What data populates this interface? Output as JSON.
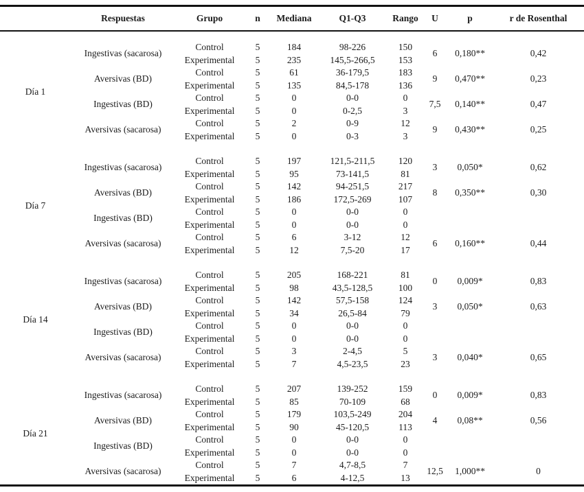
{
  "page": {
    "background": "#ffffff",
    "text_color": "#1c1c1c",
    "rule_color": "#111111"
  },
  "table": {
    "columns": [
      "",
      "Respuestas",
      "Grupo",
      "n",
      "Mediana",
      "Q1-Q3",
      "Rango",
      "U",
      "p",
      "r de Rosenthal"
    ],
    "days": [
      {
        "label": "Día 1",
        "groups": [
          {
            "respuesta": "Ingestivas (sacarosa)",
            "rows": [
              [
                "Control",
                "5",
                "184",
                "98-226",
                "150"
              ],
              [
                "Experimental",
                "5",
                "235",
                "145,5-266,5",
                "153"
              ]
            ],
            "u": "6",
            "p": "0,180**",
            "r": "0,42"
          },
          {
            "respuesta": "Aversivas (BD)",
            "rows": [
              [
                "Control",
                "5",
                "61",
                "36-179,5",
                "183"
              ],
              [
                "Experimental",
                "5",
                "135",
                "84,5-178",
                "136"
              ]
            ],
            "u": "9",
            "p": "0,470**",
            "r": "0,23"
          },
          {
            "respuesta": "Ingestivas (BD)",
            "rows": [
              [
                "Control",
                "5",
                "0",
                "0-0",
                "0"
              ],
              [
                "Experimental",
                "5",
                "0",
                "0-2,5",
                "3"
              ]
            ],
            "u": "7,5",
            "p": "0,140**",
            "r": "0,47"
          },
          {
            "respuesta": "Aversivas (sacarosa)",
            "rows": [
              [
                "Control",
                "5",
                "2",
                "0-9",
                "12"
              ],
              [
                "Experimental",
                "5",
                "0",
                "0-3",
                "3"
              ]
            ],
            "u": "9",
            "p": "0,430**",
            "r": "0,25"
          }
        ]
      },
      {
        "label": "Día 7",
        "groups": [
          {
            "respuesta": "Ingestivas (sacarosa)",
            "rows": [
              [
                "Control",
                "5",
                "197",
                "121,5-211,5",
                "120"
              ],
              [
                "Experimental",
                "5",
                "95",
                "73-141,5",
                "81"
              ]
            ],
            "u": "3",
            "p": "0,050*",
            "r": "0,62"
          },
          {
            "respuesta": "Aversivas (BD)",
            "rows": [
              [
                "Control",
                "5",
                "142",
                "94-251,5",
                "217"
              ],
              [
                "Experimental",
                "5",
                "186",
                "172,5-269",
                "107"
              ]
            ],
            "u": "8",
            "p": "0,350**",
            "r": "0,30"
          },
          {
            "respuesta": "Ingestivas (BD)",
            "rows": [
              [
                "Control",
                "5",
                "0",
                "0-0",
                "0"
              ],
              [
                "Experimental",
                "5",
                "0",
                "0-0",
                "0"
              ]
            ],
            "u": "",
            "p": "",
            "r": ""
          },
          {
            "respuesta": "Aversivas (sacarosa)",
            "rows": [
              [
                "Control",
                "5",
                "6",
                "3-12",
                "12"
              ],
              [
                "Experimental",
                "5",
                "12",
                "7,5-20",
                "17"
              ]
            ],
            "u": "6",
            "p": "0,160**",
            "r": "0,44"
          }
        ]
      },
      {
        "label": "Día 14",
        "groups": [
          {
            "respuesta": "Ingestivas (sacarosa)",
            "rows": [
              [
                "Control",
                "5",
                "205",
                "168-221",
                "81"
              ],
              [
                "Experimental",
                "5",
                "98",
                "43,5-128,5",
                "100"
              ]
            ],
            "u": "0",
            "p": "0,009*",
            "r": "0,83"
          },
          {
            "respuesta": "Aversivas (BD)",
            "rows": [
              [
                "Control",
                "5",
                "142",
                "57,5-158",
                "124"
              ],
              [
                "Experimental",
                "5",
                "34",
                "26,5-84",
                "79"
              ]
            ],
            "u": "3",
            "p": "0,050*",
            "r": "0,63"
          },
          {
            "respuesta": "Ingestivas (BD)",
            "rows": [
              [
                "Control",
                "5",
                "0",
                "0-0",
                "0"
              ],
              [
                "Experimental",
                "5",
                "0",
                "0-0",
                "0"
              ]
            ],
            "u": "",
            "p": "",
            "r": ""
          },
          {
            "respuesta": "Aversivas (sacarosa)",
            "rows": [
              [
                "Control",
                "5",
                "3",
                "2-4,5",
                "5"
              ],
              [
                "Experimental",
                "5",
                "7",
                "4,5-23,5",
                "23"
              ]
            ],
            "u": "3",
            "p": "0,040*",
            "r": "0,65"
          }
        ]
      },
      {
        "label": "Día 21",
        "groups": [
          {
            "respuesta": "Ingestivas (sacarosa)",
            "rows": [
              [
                "Control",
                "5",
                "207",
                "139-252",
                "159"
              ],
              [
                "Experimental",
                "5",
                "85",
                "70-109",
                "68"
              ]
            ],
            "u": "0",
            "p": "0,009*",
            "r": "0,83"
          },
          {
            "respuesta": "Aversivas (BD)",
            "rows": [
              [
                "Control",
                "5",
                "179",
                "103,5-249",
                "204"
              ],
              [
                "Experimental",
                "5",
                "90",
                "45-120,5",
                "113"
              ]
            ],
            "u": "4",
            "p": "0,08**",
            "r": "0,56"
          },
          {
            "respuesta": "Ingestivas (BD)",
            "rows": [
              [
                "Control",
                "5",
                "0",
                "0-0",
                "0"
              ],
              [
                "Experimental",
                "5",
                "0",
                "0-0",
                "0"
              ]
            ],
            "u": "",
            "p": "",
            "r": ""
          },
          {
            "respuesta": "Aversivas (sacarosa)",
            "rows": [
              [
                "Control",
                "5",
                "7",
                "4,7-8,5",
                "7"
              ],
              [
                "Experimental",
                "5",
                "6",
                "4-12,5",
                "13"
              ]
            ],
            "u": "12,5",
            "p": "1,000**",
            "r": "0"
          }
        ]
      }
    ]
  }
}
